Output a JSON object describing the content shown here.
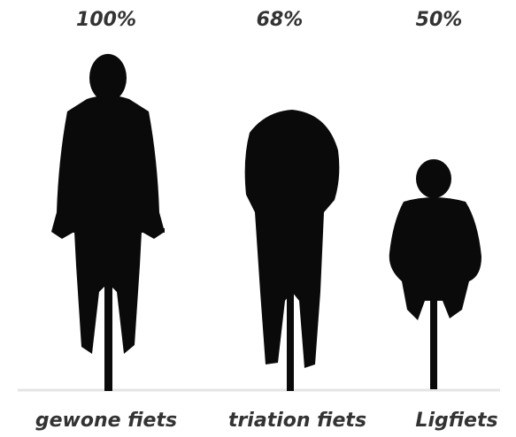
{
  "items": [
    {
      "percent": "100%",
      "label": "gewone fiets"
    },
    {
      "percent": "68%",
      "label": "triation fiets"
    },
    {
      "percent": "50%",
      "label": "Ligfiets"
    }
  ]
}
